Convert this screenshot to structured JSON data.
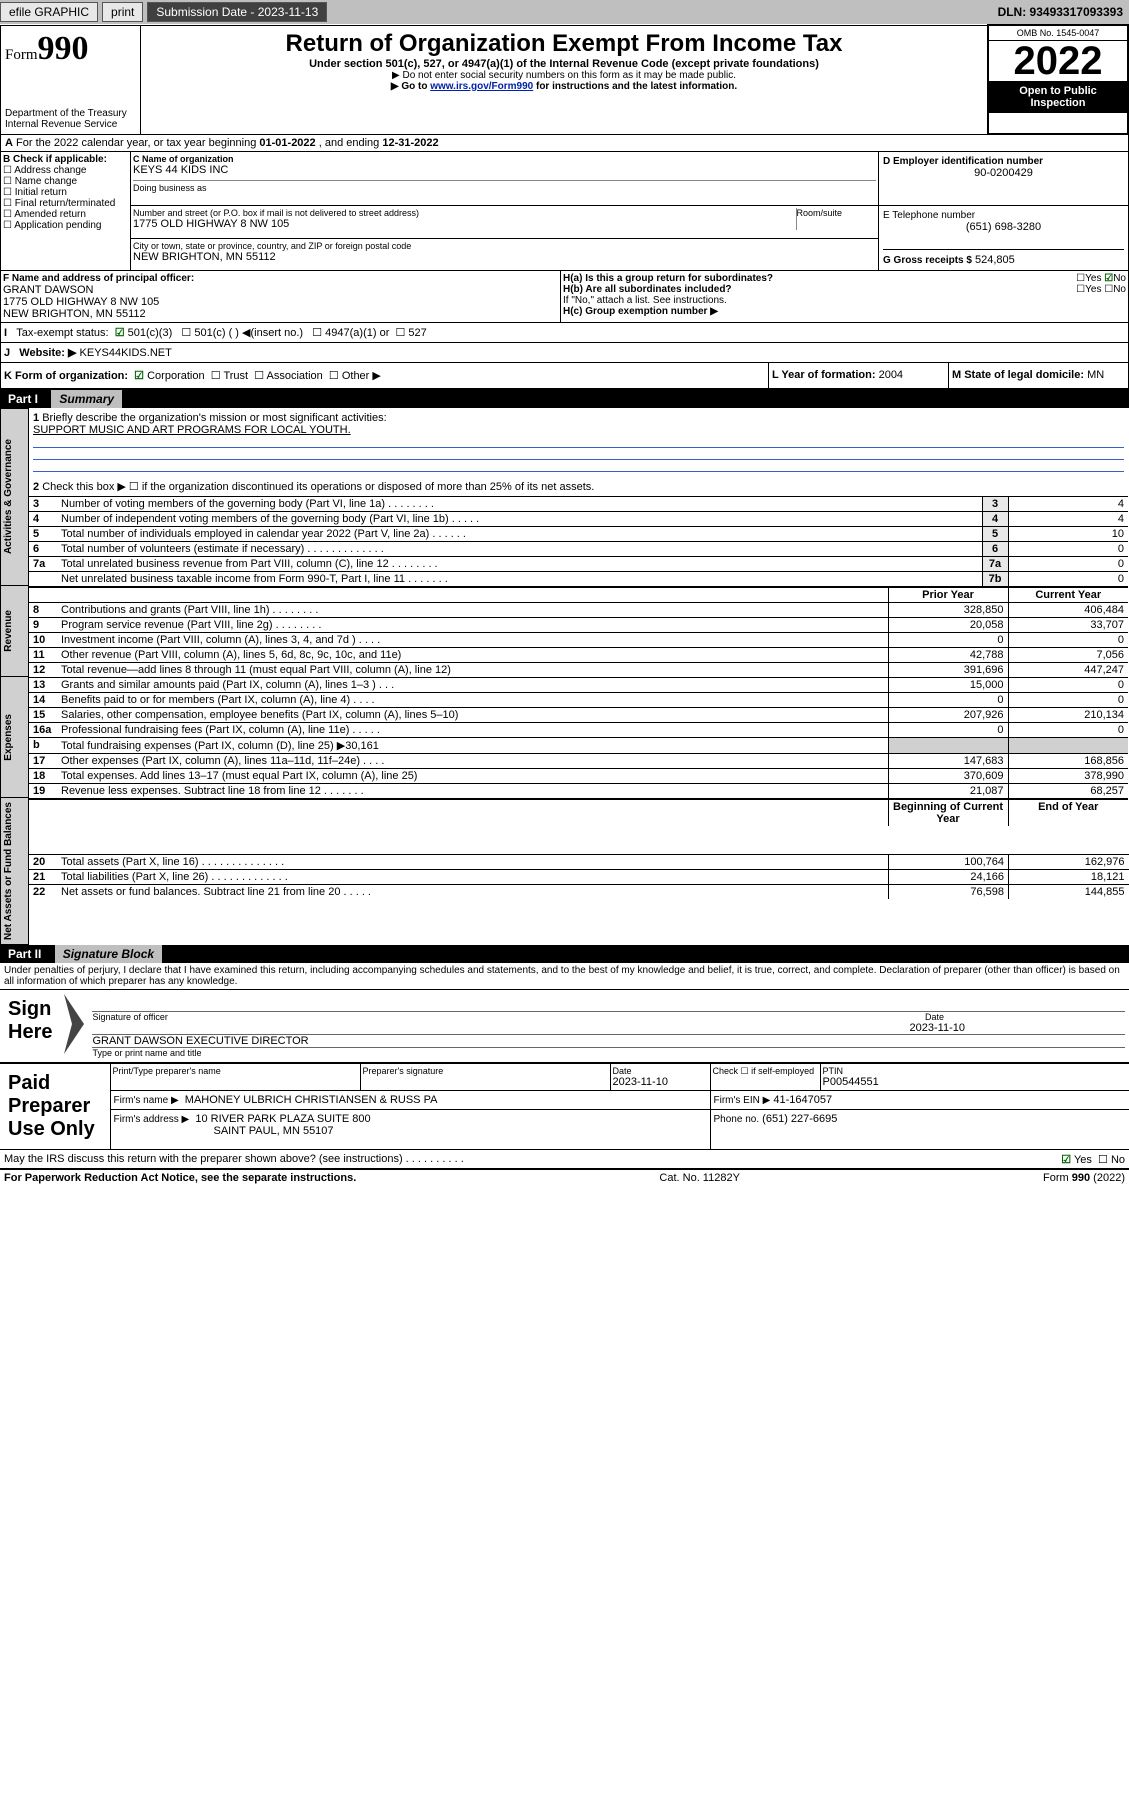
{
  "topbar": {
    "efile": "efile GRAPHIC",
    "print": "print",
    "subdate_label": "Submission Date - 2023-11-13",
    "dln": "DLN: 93493317093393"
  },
  "header": {
    "form_sm": "Form",
    "form_no": "990",
    "title": "Return of Organization Exempt From Income Tax",
    "subtitle": "Under section 501(c), 527, or 4947(a)(1) of the Internal Revenue Code (except private foundations)",
    "instr1": "▶ Do not enter social security numbers on this form as it may be made public.",
    "instr2_a": "▶ Go to ",
    "instr2_link": "www.irs.gov/Form990",
    "instr2_b": " for instructions and the latest information.",
    "dept": "Department of the Treasury",
    "irs": "Internal Revenue Service",
    "omb": "OMB No. 1545-0047",
    "year": "2022",
    "open": "Open to Public Inspection"
  },
  "A": {
    "text_a": "For the 2022 calendar year, or tax year beginning ",
    "begin": "01-01-2022",
    "mid": " , and ending ",
    "end": "12-31-2022"
  },
  "B": {
    "label": "B Check if applicable:",
    "items": [
      "Address change",
      "Name change",
      "Initial return",
      "Final return/terminated",
      "Amended return",
      "Application pending"
    ]
  },
  "C": {
    "label": "C Name of organization",
    "name": "KEYS 44 KIDS INC",
    "dba_label": "Doing business as",
    "addr_label": "Number and street (or P.O. box if mail is not delivered to street address)",
    "room_label": "Room/suite",
    "addr": "1775 OLD HIGHWAY 8 NW 105",
    "city_label": "City or town, state or province, country, and ZIP or foreign postal code",
    "city": "NEW BRIGHTON, MN  55112"
  },
  "D": {
    "label": "D Employer identification number",
    "ein": "90-0200429"
  },
  "E": {
    "label": "E Telephone number",
    "phone": "(651) 698-3280"
  },
  "G": {
    "label": "G Gross receipts $",
    "amount": "524,805"
  },
  "F": {
    "label": "F  Name and address of principal officer:",
    "name": "GRANT DAWSON",
    "addr1": "1775 OLD HIGHWAY 8 NW 105",
    "addr2": "NEW BRIGHTON, MN  55112"
  },
  "H": {
    "a": "H(a)  Is this a group return for subordinates?",
    "b": "H(b)  Are all subordinates included?",
    "ifno": "If \"No,\" attach a list. See instructions.",
    "c": "H(c)  Group exemption number ▶",
    "yes": "Yes",
    "no": "No"
  },
  "I": {
    "label": "Tax-exempt status:",
    "c3": "501(c)(3)",
    "c": "501(c) ( ) ◀(insert no.)",
    "a": "4947(a)(1) or",
    "s527": "527"
  },
  "J": {
    "label": "Website: ▶",
    "site": "KEYS44KIDS.NET"
  },
  "K": {
    "label": "K Form of organization:",
    "corp": "Corporation",
    "trust": "Trust",
    "assoc": "Association",
    "other": "Other ▶"
  },
  "L": {
    "label": "L Year of formation:",
    "year": "2004"
  },
  "M": {
    "label": "M State of legal domicile:",
    "state": "MN"
  },
  "part1": {
    "title": "Part I",
    "name": "Summary",
    "line1_label": "Briefly describe the organization's mission or most significant activities:",
    "line1_text": "SUPPORT MUSIC AND ART PROGRAMS FOR LOCAL YOUTH.",
    "line2": "Check this box ▶ ☐  if the organization discontinued its operations or disposed of more than 25% of its net assets.",
    "lines": [
      {
        "n": "3",
        "t": "Number of voting members of the governing body (Part VI, line 1a)   .   .   .   .   .   .   .   .",
        "box": "3",
        "v": "4"
      },
      {
        "n": "4",
        "t": "Number of independent voting members of the governing body (Part VI, line 1b)   .   .   .   .   .",
        "box": "4",
        "v": "4"
      },
      {
        "n": "5",
        "t": "Total number of individuals employed in calendar year 2022 (Part V, line 2a)   .   .   .   .   .   .",
        "box": "5",
        "v": "10"
      },
      {
        "n": "6",
        "t": "Total number of volunteers (estimate if necessary)   .   .   .   .   .   .   .   .   .   .   .   .   .",
        "box": "6",
        "v": "0"
      },
      {
        "n": "7a",
        "t": "Total unrelated business revenue from Part VIII, column (C), line 12   .   .   .   .   .   .   .   .",
        "box": "7a",
        "v": "0"
      },
      {
        "n": "",
        "t": "Net unrelated business taxable income from Form 990-T, Part I, line 11   .   .   .   .   .   .   .",
        "box": "7b",
        "v": "0"
      }
    ],
    "col_prior": "Prior Year",
    "col_curr": "Current Year",
    "revenue": [
      {
        "n": "8",
        "t": "Contributions and grants (Part VIII, line 1h)   .   .   .   .   .   .   .   .",
        "p": "328,850",
        "c": "406,484"
      },
      {
        "n": "9",
        "t": "Program service revenue (Part VIII, line 2g)   .   .   .   .   .   .   .   .",
        "p": "20,058",
        "c": "33,707"
      },
      {
        "n": "10",
        "t": "Investment income (Part VIII, column (A), lines 3, 4, and 7d )   .   .   .   .",
        "p": "0",
        "c": "0"
      },
      {
        "n": "11",
        "t": "Other revenue (Part VIII, column (A), lines 5, 6d, 8c, 9c, 10c, and 11e)",
        "p": "42,788",
        "c": "7,056"
      },
      {
        "n": "12",
        "t": "Total revenue—add lines 8 through 11 (must equal Part VIII, column (A), line 12)",
        "p": "391,696",
        "c": "447,247"
      }
    ],
    "expenses": [
      {
        "n": "13",
        "t": "Grants and similar amounts paid (Part IX, column (A), lines 1–3 )   .   .   .",
        "p": "15,000",
        "c": "0"
      },
      {
        "n": "14",
        "t": "Benefits paid to or for members (Part IX, column (A), line 4)   .   .   .   .",
        "p": "0",
        "c": "0"
      },
      {
        "n": "15",
        "t": "Salaries, other compensation, employee benefits (Part IX, column (A), lines 5–10)",
        "p": "207,926",
        "c": "210,134"
      },
      {
        "n": "16a",
        "t": "Professional fundraising fees (Part IX, column (A), line 11e)   .   .   .   .   .",
        "p": "0",
        "c": "0"
      },
      {
        "n": "b",
        "t": "Total fundraising expenses (Part IX, column (D), line 25) ▶30,161",
        "p": "",
        "c": ""
      },
      {
        "n": "17",
        "t": "Other expenses (Part IX, column (A), lines 11a–11d, 11f–24e)   .   .   .   .",
        "p": "147,683",
        "c": "168,856"
      },
      {
        "n": "18",
        "t": "Total expenses. Add lines 13–17 (must equal Part IX, column (A), line 25)",
        "p": "370,609",
        "c": "378,990"
      },
      {
        "n": "19",
        "t": "Revenue less expenses. Subtract line 18 from line 12   .   .   .   .   .   .   .",
        "p": "21,087",
        "c": "68,257"
      }
    ],
    "col_beg": "Beginning of Current Year",
    "col_end": "End of Year",
    "netassets": [
      {
        "n": "20",
        "t": "Total assets (Part X, line 16)   .   .   .   .   .   .   .   .   .   .   .   .   .   .",
        "p": "100,764",
        "c": "162,976"
      },
      {
        "n": "21",
        "t": "Total liabilities (Part X, line 26)   .   .   .   .   .   .   .   .   .   .   .   .   .",
        "p": "24,166",
        "c": "18,121"
      },
      {
        "n": "22",
        "t": "Net assets or fund balances. Subtract line 21 from line 20   .   .   .   .   .",
        "p": "76,598",
        "c": "144,855"
      }
    ]
  },
  "vtabs": {
    "gov": "Activities & Governance",
    "rev": "Revenue",
    "exp": "Expenses",
    "net": "Net Assets or Fund Balances"
  },
  "part2": {
    "title": "Part II",
    "name": "Signature Block",
    "decl": "Under penalties of perjury, I declare that I have examined this return, including accompanying schedules and statements, and to the best of my knowledge and belief, it is true, correct, and complete. Declaration of preparer (other than officer) is based on all information of which preparer has any knowledge."
  },
  "sign": {
    "left": "Sign Here",
    "sig_label": "Signature of officer",
    "date_label": "Date",
    "date": "2023-11-10",
    "name": "GRANT DAWSON  EXECUTIVE DIRECTOR",
    "name_label": "Type or print name and title"
  },
  "paid": {
    "left": "Paid Preparer Use Only",
    "prep_name_label": "Print/Type preparer's name",
    "prep_sig_label": "Preparer's signature",
    "date_label": "Date",
    "date": "2023-11-10",
    "check_label": "Check ☐ if self-employed",
    "ptin_label": "PTIN",
    "ptin": "P00544551",
    "firm_name_label": "Firm's name   ▶",
    "firm_name": "MAHONEY ULBRICH CHRISTIANSEN & RUSS PA",
    "firm_ein_label": "Firm's EIN ▶",
    "firm_ein": "41-1647057",
    "firm_addr_label": "Firm's address ▶",
    "firm_addr1": "10 RIVER PARK PLAZA SUITE 800",
    "firm_addr2": "SAINT PAUL, MN  55107",
    "phone_label": "Phone no.",
    "phone": "(651) 227-6695"
  },
  "discuss": {
    "q": "May the IRS discuss this return with the preparer shown above? (see instructions)   .   .   .   .   .   .   .   .   .   .",
    "yes": "Yes",
    "no": "No"
  },
  "footer": {
    "left": "For Paperwork Reduction Act Notice, see the separate instructions.",
    "mid": "Cat. No. 11282Y",
    "right": "Form 990 (2022)"
  }
}
